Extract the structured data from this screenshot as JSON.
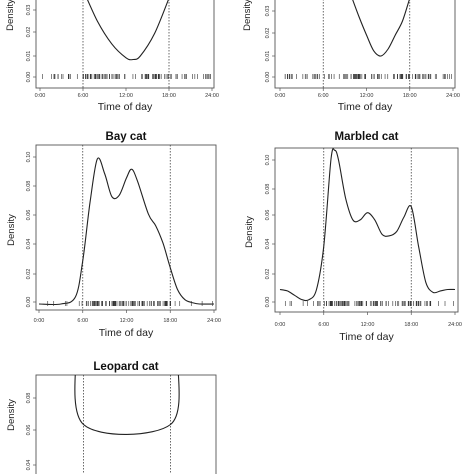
{
  "chart_data": [
    {
      "type": "line",
      "title": "",
      "xlabel": "Time of day",
      "ylabel": "Density",
      "xticks": [
        "0:00",
        "6:00",
        "12:00",
        "18:00",
        "24:00"
      ],
      "yticks": [
        "0.00",
        "0.01",
        "0.02",
        "0.03"
      ],
      "x": [
        6,
        8,
        10,
        12,
        13,
        14,
        16,
        18
      ],
      "series": [
        {
          "values": [
            0.05,
            0.032,
            0.019,
            0.011,
            0.01,
            0.012,
            0.025,
            0.045
          ]
        }
      ],
      "reference_lines": [
        6,
        18
      ],
      "rug": true
    },
    {
      "type": "line",
      "title": "",
      "xlabel": "Time of day",
      "ylabel": "Density",
      "xticks": [
        "0:00",
        "6:00",
        "12:00",
        "18:00",
        "24:00"
      ],
      "yticks": [
        "0.00",
        "0.01",
        "0.02",
        "0.03"
      ],
      "x": [
        10,
        11,
        12,
        13,
        14,
        15,
        16,
        17,
        18
      ],
      "series": [
        {
          "values": [
            0.045,
            0.034,
            0.024,
            0.015,
            0.012,
            0.016,
            0.024,
            0.032,
            0.045
          ]
        }
      ],
      "reference_lines": [
        6,
        18
      ],
      "rug": true
    },
    {
      "type": "line",
      "title": "Bay cat",
      "xlabel": "Time of day",
      "ylabel": "Density",
      "xticks": [
        "0:00",
        "6:00",
        "12:00",
        "18:00",
        "24:00"
      ],
      "yticks": [
        "0.00",
        "0.02",
        "0.04",
        "0.06",
        "0.08",
        "0.10"
      ],
      "ylim": [
        0,
        0.105
      ],
      "x": [
        0,
        3,
        5,
        6,
        7,
        8,
        9,
        10,
        11,
        12,
        12.7,
        13.5,
        15,
        16,
        17,
        18,
        19,
        20,
        21,
        22,
        24
      ],
      "series": [
        {
          "values": [
            0.0,
            0.0,
            0.005,
            0.03,
            0.07,
            0.1,
            0.09,
            0.074,
            0.075,
            0.087,
            0.093,
            0.085,
            0.062,
            0.054,
            0.042,
            0.025,
            0.01,
            0.003,
            0.001,
            0.0,
            0.0
          ]
        }
      ],
      "reference_lines": [
        6,
        18
      ],
      "rug": true
    },
    {
      "type": "line",
      "title": "Marbled cat",
      "xlabel": "Time of day",
      "ylabel": "Density",
      "xticks": [
        "0:00",
        "6:00",
        "12:00",
        "18:00",
        "24:00"
      ],
      "yticks": [
        "0.00",
        "0.02",
        "0.04",
        "0.06",
        "0.08",
        "0.10"
      ],
      "ylim": [
        0,
        0.11
      ],
      "x": [
        0,
        1,
        2,
        3,
        4,
        5,
        6,
        7,
        7.5,
        8,
        9,
        10,
        11,
        12,
        13,
        14,
        15,
        16,
        17,
        18,
        19,
        20,
        21,
        22,
        23,
        24
      ],
      "series": [
        {
          "values": [
            0.01,
            0.009,
            0.006,
            0.003,
            0.003,
            0.01,
            0.04,
            0.1,
            0.106,
            0.1,
            0.073,
            0.058,
            0.058,
            0.063,
            0.058,
            0.048,
            0.047,
            0.05,
            0.06,
            0.067,
            0.04,
            0.015,
            0.008,
            0.009,
            0.01,
            0.01
          ]
        }
      ],
      "reference_lines": [
        6,
        18
      ],
      "rug": true
    },
    {
      "type": "line",
      "title": "Leopard cat",
      "xlabel": "",
      "ylabel": "Density",
      "xticks": [],
      "yticks": [
        "0.04",
        "0.06",
        "0.08"
      ],
      "x": [
        0,
        1,
        2,
        3,
        3.5,
        4,
        5,
        6,
        18,
        19,
        20,
        21,
        22,
        23,
        24
      ],
      "series": [
        {
          "values": [
            0.084,
            0.083,
            0.078,
            0.075,
            0.078,
            0.082,
            0.081,
            0.03,
            0.03,
            0.075,
            0.081,
            0.082,
            0.083,
            0.084,
            0.083
          ]
        }
      ],
      "reference_lines": [
        6,
        18
      ],
      "rug": false
    }
  ]
}
